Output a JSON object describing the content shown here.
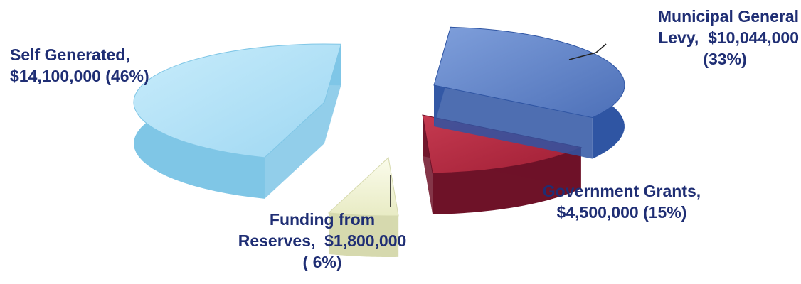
{
  "chart_data": {
    "type": "pie",
    "style": "3d-exploded",
    "title": "",
    "legend": "none",
    "slices": [
      {
        "name": "Municipal General Levy",
        "value": 10044000,
        "percent": 33,
        "color": "#5b7fc4",
        "label_lines": [
          "Municipal General",
          "Levy,  $10,044,000",
          "(33%)"
        ]
      },
      {
        "name": "Government Grants",
        "value": 4500000,
        "percent": 15,
        "color": "#b3283f",
        "label_lines": [
          "Government Grants,",
          "$4,500,000 (15%)"
        ]
      },
      {
        "name": "Funding from Reserves",
        "value": 1800000,
        "percent": 6,
        "color": "#f4f6d8",
        "label_lines": [
          "Funding from",
          "Reserves,  $1,800,000",
          "( 6%)"
        ]
      },
      {
        "name": "Self Generated",
        "value": 14100000,
        "percent": 46,
        "color": "#aee0f6",
        "label_lines": [
          "Self Generated,",
          "$14,100,000 (46%)"
        ]
      }
    ]
  }
}
